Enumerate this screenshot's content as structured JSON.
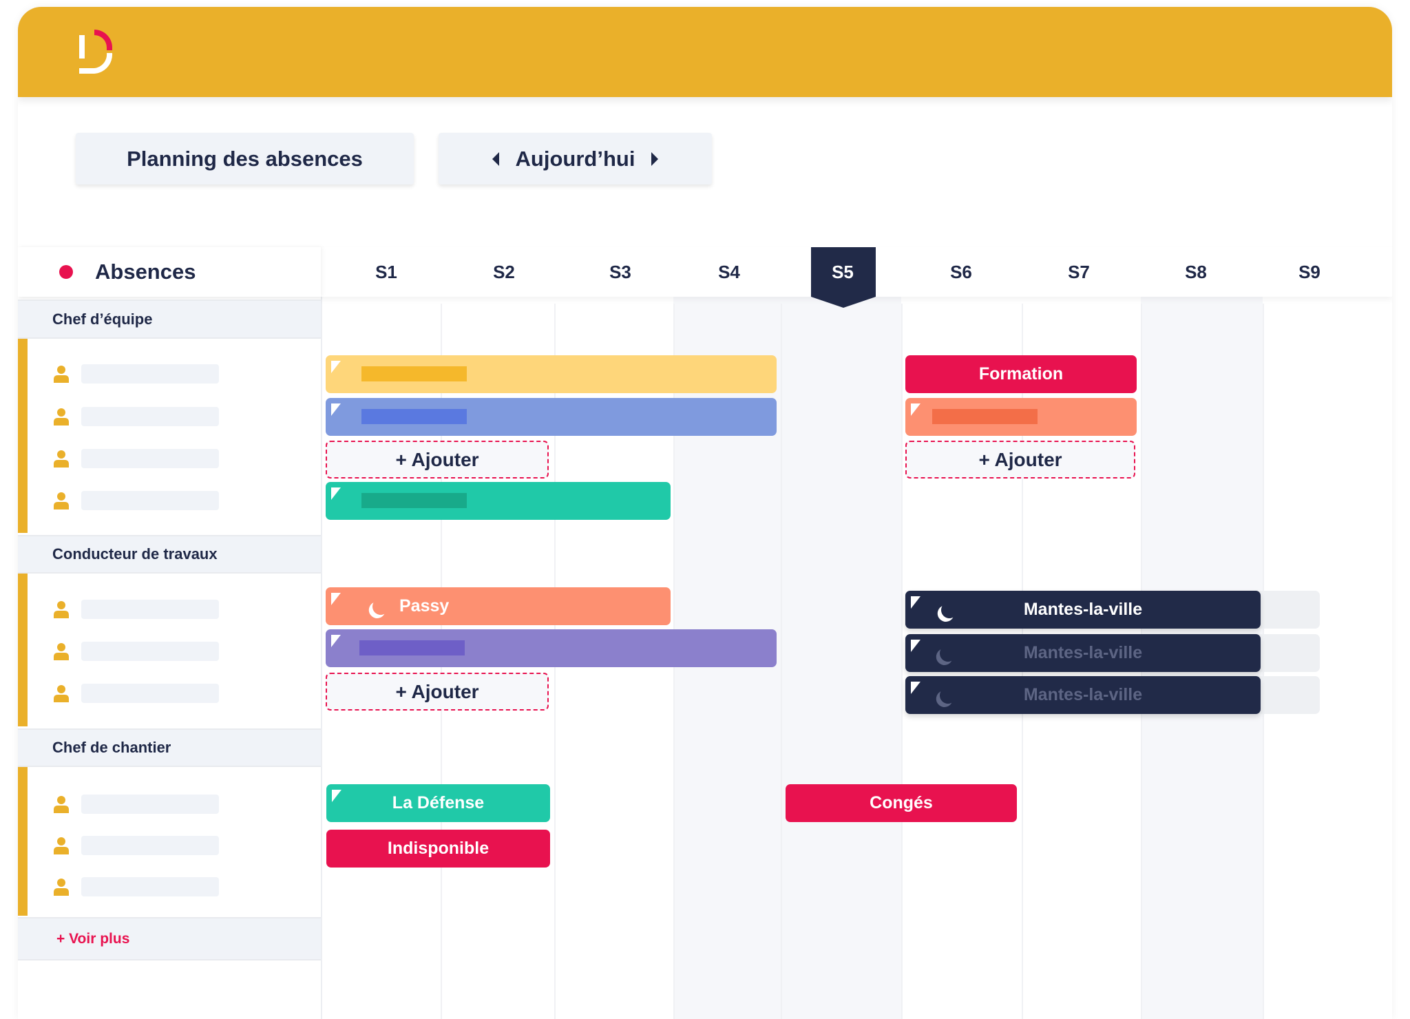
{
  "colors": {
    "header": "#EAB02A",
    "accent": "#E8124F",
    "navy": "#1F2847"
  },
  "toolbar": {
    "title": "Planning des absences",
    "today": "Aujourd’hui"
  },
  "table": {
    "header": "Absences",
    "weeks": [
      "S1",
      "S2",
      "S3",
      "S4",
      "S5",
      "S6",
      "S7",
      "S8",
      "S9"
    ],
    "current_week": "S5"
  },
  "groups": [
    {
      "name": "Chef d’équipe"
    },
    {
      "name": "Conducteur de travaux"
    },
    {
      "name": "Chef de chantier"
    }
  ],
  "more": "+ Voir plus",
  "bars": {
    "formation": "Formation",
    "add": "+ Ajouter",
    "passy": "Passy",
    "mantes": "Mantes-la-ville",
    "defense": "La Défense",
    "indispo": "Indisponible",
    "conges": "Congés"
  }
}
